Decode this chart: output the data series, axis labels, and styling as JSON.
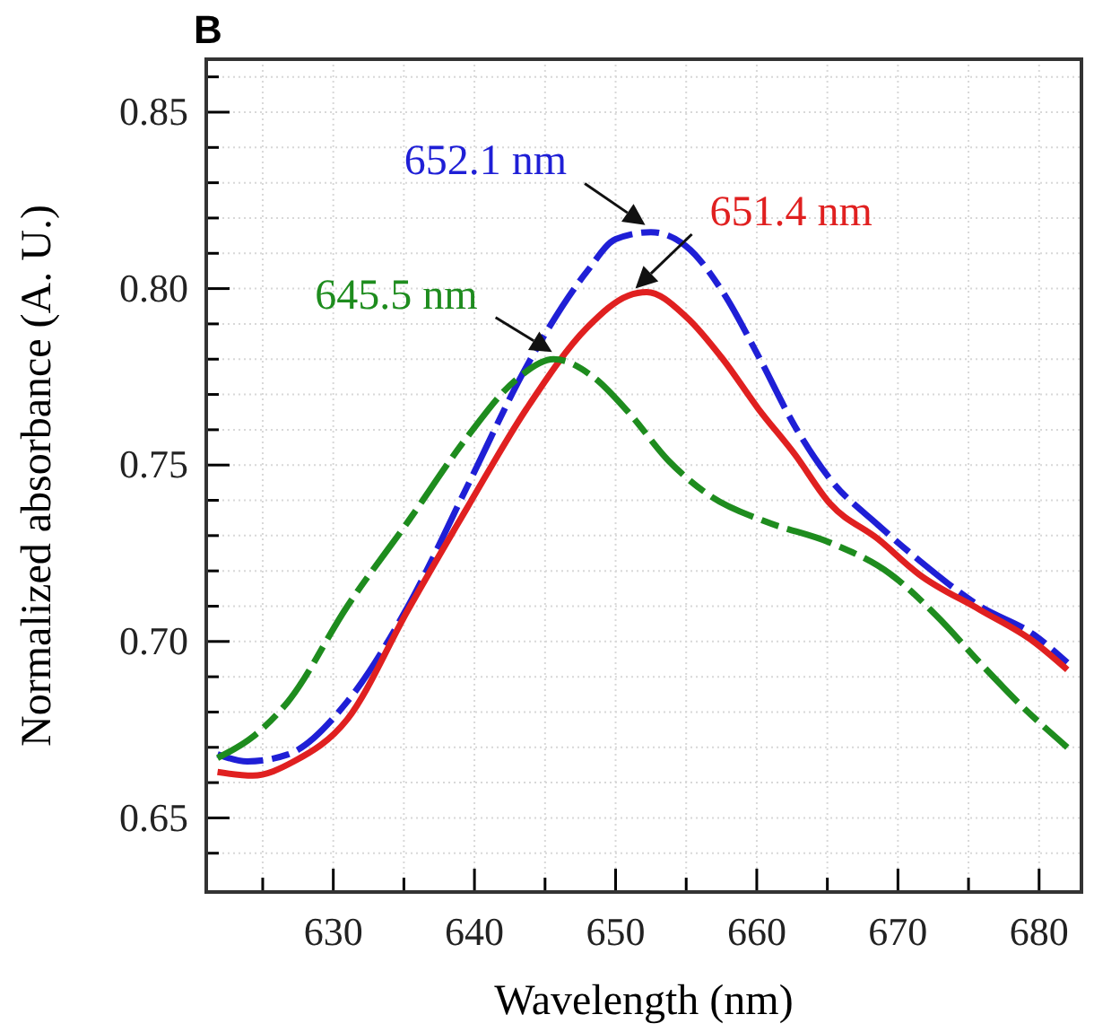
{
  "chart_data": {
    "type": "line",
    "title": "B",
    "xlabel": "Wavelength (nm)",
    "ylabel": "Normalized absorbance (A. U.)",
    "xlim": [
      621,
      683
    ],
    "ylim": [
      0.629,
      0.865
    ],
    "xticks": [
      {
        "value": 625,
        "label": null
      },
      630,
      {
        "value": 635,
        "label": null
      },
      640,
      {
        "value": 645,
        "label": null
      },
      650,
      {
        "value": 655,
        "label": null
      },
      660,
      {
        "value": 665,
        "label": null
      },
      670,
      {
        "value": 675,
        "label": null
      },
      680
    ],
    "yticks": [
      {
        "value": 0.64,
        "label": null
      },
      {
        "value": 0.65,
        "label": "0.65"
      },
      {
        "value": 0.66,
        "label": null
      },
      {
        "value": 0.67,
        "label": null
      },
      {
        "value": 0.68,
        "label": null
      },
      {
        "value": 0.69,
        "label": null
      },
      {
        "value": 0.7,
        "label": "0.70"
      },
      {
        "value": 0.71,
        "label": null
      },
      {
        "value": 0.72,
        "label": null
      },
      {
        "value": 0.73,
        "label": null
      },
      {
        "value": 0.74,
        "label": null
      },
      {
        "value": 0.75,
        "label": "0.75"
      },
      {
        "value": 0.76,
        "label": null
      },
      {
        "value": 0.77,
        "label": null
      },
      {
        "value": 0.78,
        "label": null
      },
      {
        "value": 0.79,
        "label": null
      },
      {
        "value": 0.8,
        "label": "0.80"
      },
      {
        "value": 0.81,
        "label": null
      },
      {
        "value": 0.82,
        "label": null
      },
      {
        "value": 0.83,
        "label": null
      },
      {
        "value": 0.84,
        "label": null
      },
      {
        "value": 0.85,
        "label": "0.85"
      },
      {
        "value": 0.86,
        "label": null
      }
    ],
    "grid": true,
    "series": [
      {
        "color": "#1f1fd6",
        "line_style": "dashed",
        "x": [
          621.8,
          623.9,
          626.8,
          631,
          635.3,
          639.5,
          643.7,
          648,
          650,
          652.5,
          655,
          657.6,
          660.1,
          662.7,
          665.2,
          668.6,
          671.5,
          675.8,
          679.6,
          682
        ],
        "values": [
          0.668,
          0.666,
          0.668,
          0.683,
          0.71,
          0.744,
          0.778,
          0.805,
          0.814,
          0.816,
          0.812,
          0.799,
          0.781,
          0.761,
          0.746,
          0.733,
          0.723,
          0.71,
          0.702,
          0.694
        ]
      },
      {
        "color": "#e02020",
        "line_style": "solid",
        "x": [
          621.8,
          624.3,
          627.2,
          631,
          635.3,
          639.5,
          643.7,
          648,
          650.9,
          652.2,
          655,
          657.6,
          660.1,
          662.7,
          665.2,
          668.6,
          671.5,
          675.8,
          679.6,
          682
        ],
        "values": [
          0.663,
          0.662,
          0.666,
          0.678,
          0.709,
          0.738,
          0.766,
          0.789,
          0.798,
          0.799,
          0.792,
          0.78,
          0.766,
          0.753,
          0.739,
          0.729,
          0.719,
          0.709,
          0.7,
          0.692
        ]
      },
      {
        "color": "#1e8c1e",
        "line_style": "dashed",
        "x": [
          621.8,
          624.3,
          626.8,
          631,
          635.3,
          639.5,
          642.9,
          645.6,
          648.4,
          650.9,
          653.8,
          656.8,
          660.6,
          665.2,
          669.5,
          672.8,
          675.8,
          678.7,
          682
        ],
        "values": [
          0.667,
          0.673,
          0.683,
          0.71,
          0.734,
          0.758,
          0.774,
          0.78,
          0.775,
          0.765,
          0.751,
          0.741,
          0.734,
          0.728,
          0.719,
          0.707,
          0.694,
          0.682,
          0.67
        ]
      }
    ],
    "annotations": [
      {
        "text": "652.1 nm",
        "x": 652.1,
        "y": 0.816
      },
      {
        "text": "651.4 nm",
        "x": 651.4,
        "y": 0.798
      },
      {
        "text": "645.5 nm",
        "x": 645.5,
        "y": 0.78
      }
    ]
  }
}
